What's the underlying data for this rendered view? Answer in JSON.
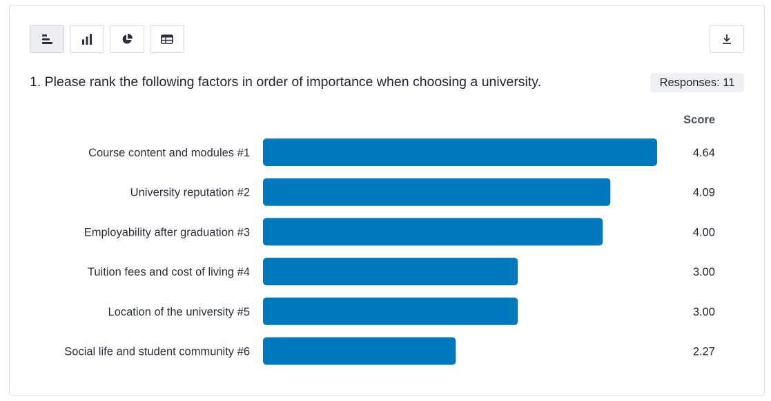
{
  "toolbar": {
    "views": [
      {
        "icon": "horizontal-bar-chart-icon",
        "active": true
      },
      {
        "icon": "vertical-bar-chart-icon",
        "active": false
      },
      {
        "icon": "pie-chart-icon",
        "active": false
      },
      {
        "icon": "table-icon",
        "active": false
      }
    ],
    "download_icon": "download-icon"
  },
  "question": {
    "title": "1. Please rank the following factors in order of importance when choosing a university.",
    "responses_label": "Responses: 11"
  },
  "colors": {
    "bar": "#0078be",
    "active_button": "#eceef1",
    "border": "#dcdfe4"
  },
  "chart_data": {
    "type": "bar",
    "orientation": "horizontal",
    "score_header": "Score",
    "categories": [
      "Course content and modules #1",
      "University reputation #2",
      "Employability after graduation #3",
      "Tuition fees and cost of living #4",
      "Location of the university #5",
      "Social life and student community #6"
    ],
    "values": [
      4.64,
      4.09,
      4.0,
      3.0,
      3.0,
      2.27
    ],
    "value_labels": [
      "4.64",
      "4.09",
      "4.00",
      "3.00",
      "3.00",
      "2.27"
    ],
    "xlim": [
      0,
      4.64
    ],
    "grid": false
  }
}
